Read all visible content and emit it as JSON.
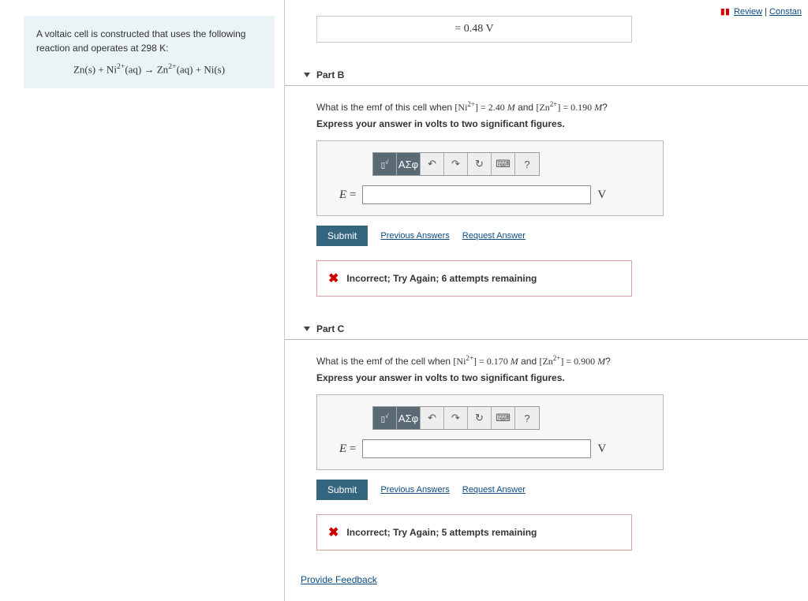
{
  "topLinks": {
    "review": "Review",
    "constants": "Constan"
  },
  "problem": {
    "intro": "A voltaic cell is constructed that uses the following reaction and operates at 298 K:",
    "equation": "Zn(s) + Ni²⁺(aq) → Zn²⁺(aq) + Ni(s)"
  },
  "prevAnswer": {
    "text": "=   0.48 V"
  },
  "parts": [
    {
      "id": "B",
      "header": "Part B",
      "question_pre": "What is the emf of this cell when ",
      "question_math1": "[Ni²⁺] = 2.40 M",
      "question_mid": " and ",
      "question_math2": "[Zn²⁺] = 0.190 M",
      "question_post": "?",
      "instruction": "Express your answer in volts to two significant figures.",
      "var": "E =",
      "unit": "V",
      "submit": "Submit",
      "prev": "Previous Answers",
      "req": "Request Answer",
      "feedback": "Incorrect; Try Again; 6 attempts remaining"
    },
    {
      "id": "C",
      "header": "Part C",
      "question_pre": "What is the emf of the cell when ",
      "question_math1": "[Ni²⁺] = 0.170 M",
      "question_mid": " and ",
      "question_math2": "[Zn²⁺] = 0.900 M",
      "question_post": "?",
      "instruction": "Express your answer in volts to two significant figures.",
      "var": "E =",
      "unit": "V",
      "submit": "Submit",
      "prev": "Previous Answers",
      "req": "Request Answer",
      "feedback": "Incorrect; Try Again; 5 attempts remaining"
    }
  ],
  "toolbar": {
    "templates": "▯√▯",
    "greek": "ΑΣφ",
    "undo": "↶",
    "redo": "↷",
    "reset": "↻",
    "keyboard": "⌨",
    "help": "?"
  },
  "footer": {
    "provideFeedback": "Provide Feedback"
  }
}
